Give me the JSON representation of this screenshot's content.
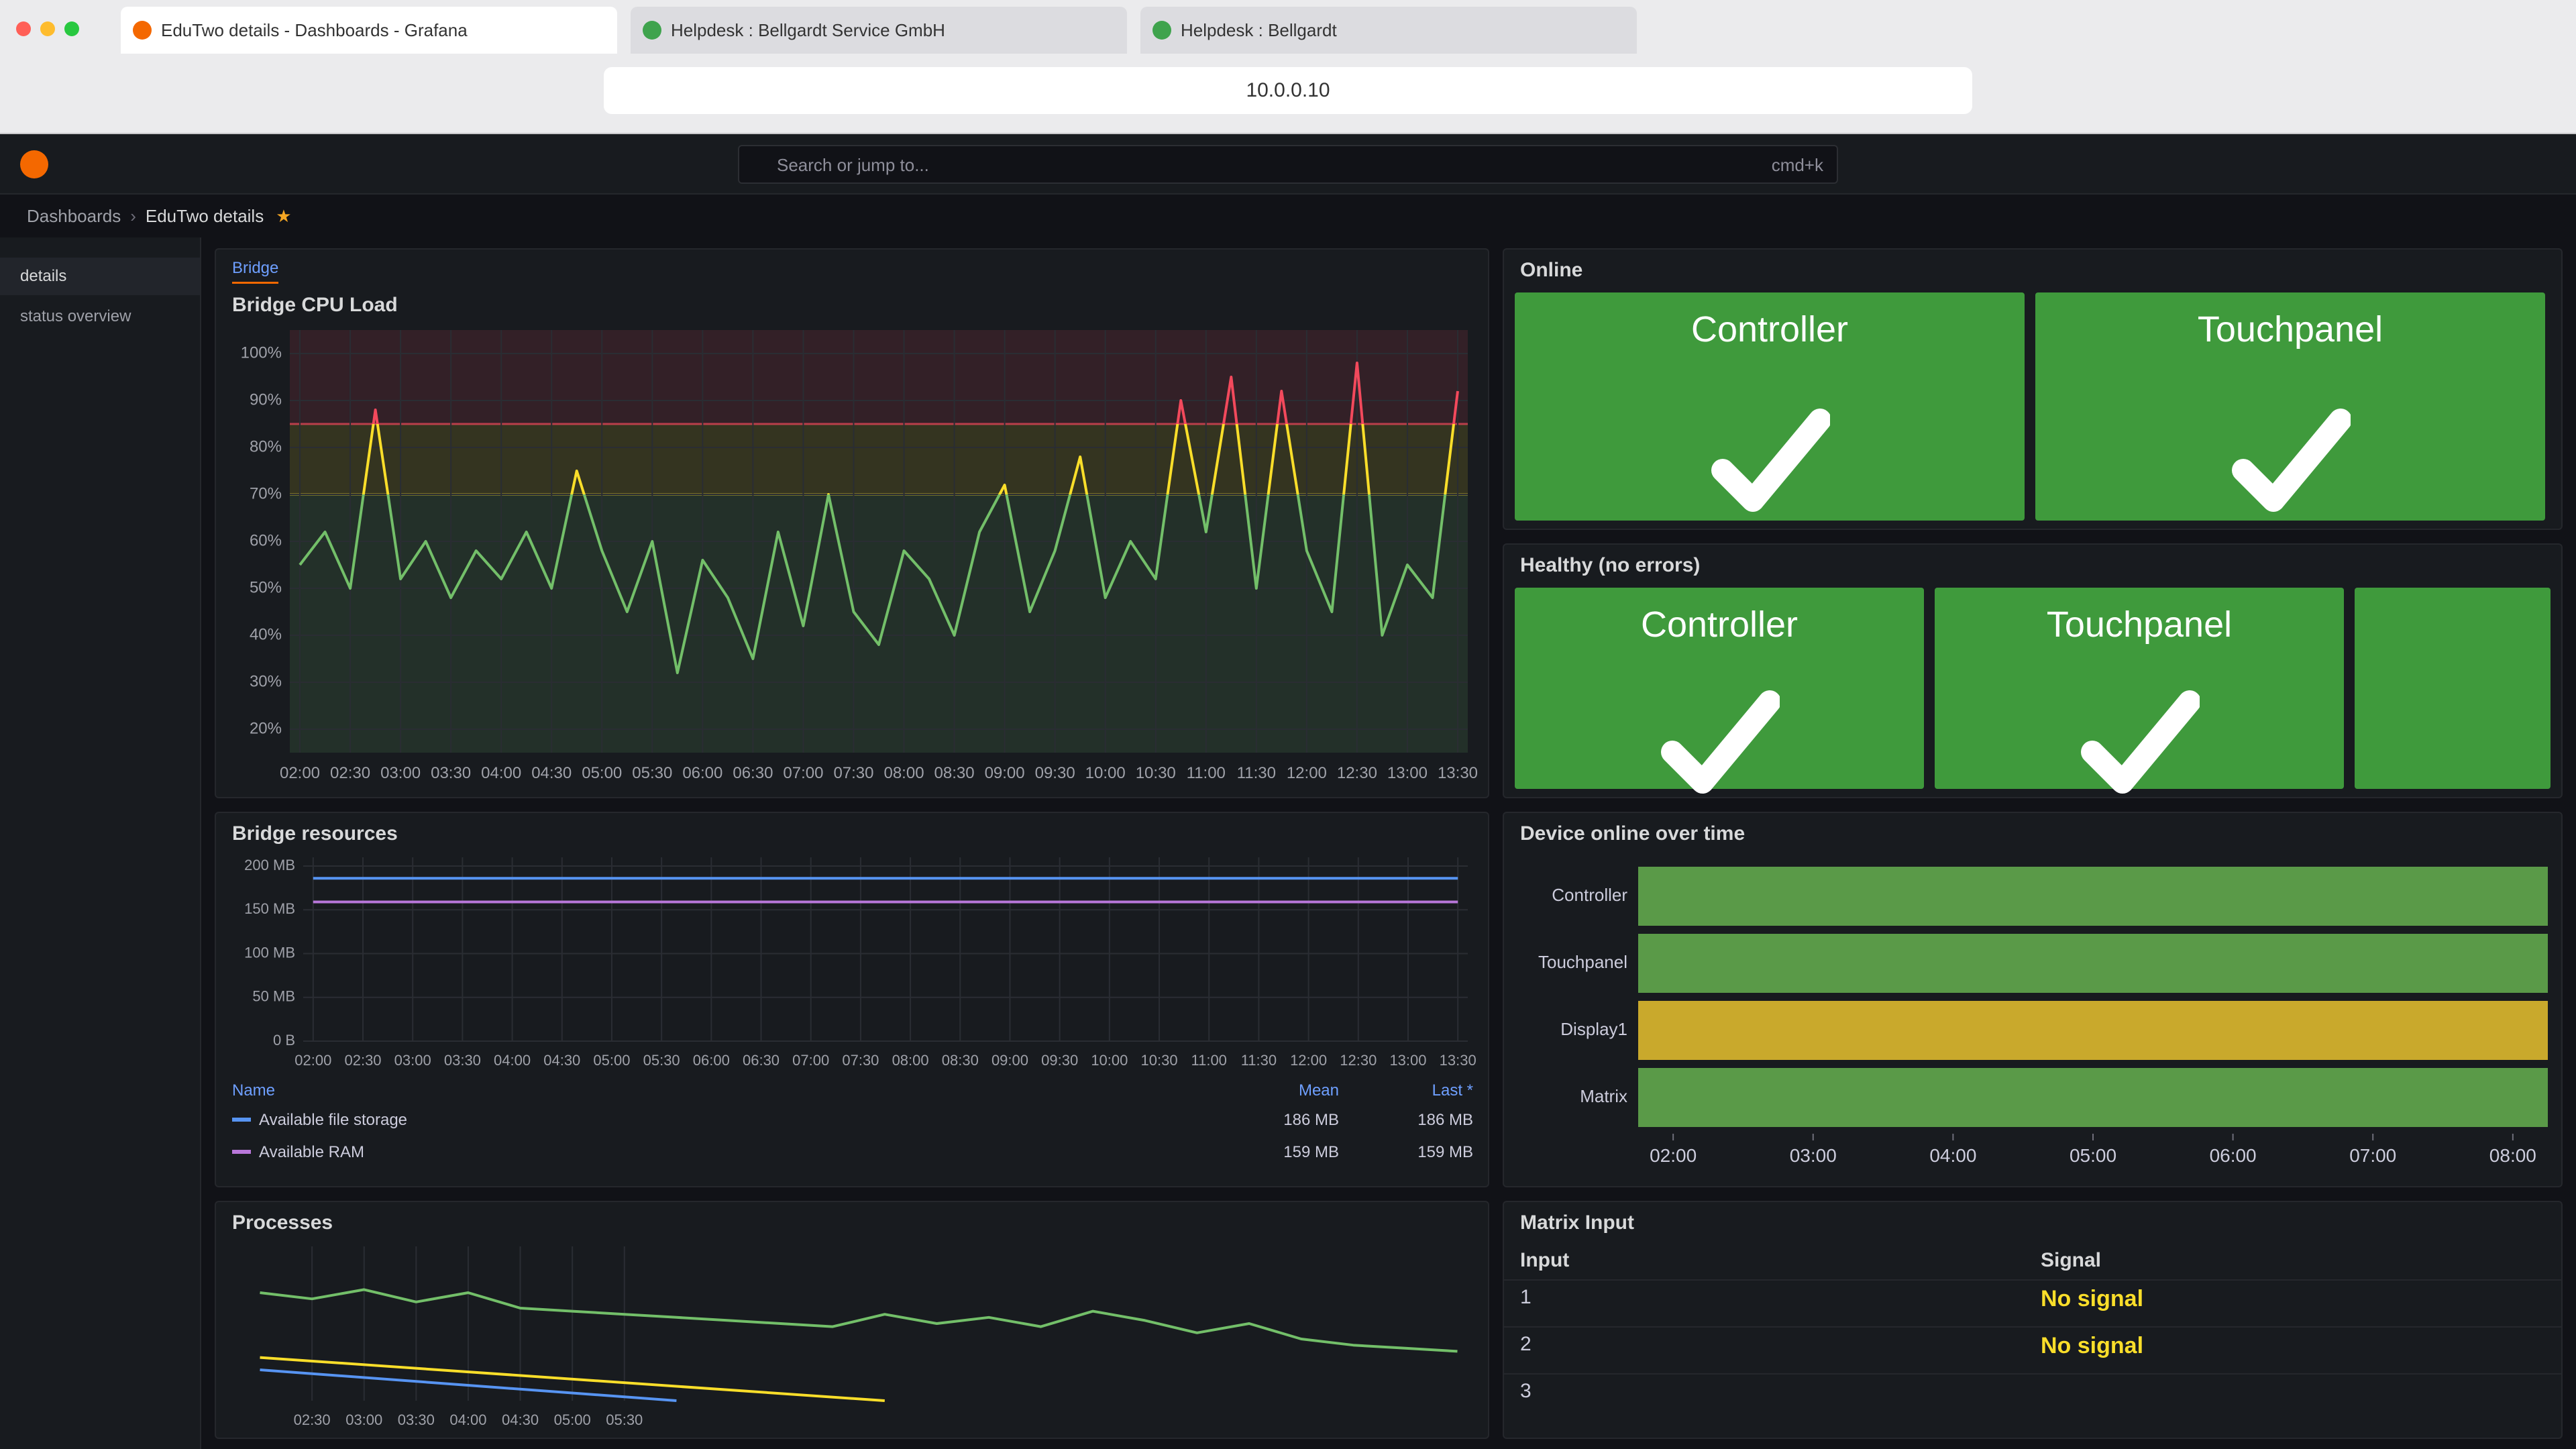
{
  "browser": {
    "tabs": [
      "EduTwo details - Dashboards - Grafana",
      "Helpdesk : Bellgardt Service GmbH",
      "Helpdesk : Bellgardt"
    ],
    "address": "10.0.0.10"
  },
  "topbar": {
    "search": "Search or jump to...",
    "shortcut": "cmd+k"
  },
  "breadcrumb": [
    "Dashboards",
    "EduTwo details"
  ],
  "sidebar": [
    "details",
    "status overview"
  ],
  "cpu_panel": {
    "tab": "Bridge",
    "title": "Bridge CPU Load",
    "chart": {
      "type": "line",
      "xlim": [
        1.9,
        13.6
      ],
      "ylim": [
        15,
        105
      ],
      "xticks": [
        {
          "value": 2,
          "label": "02:00"
        },
        {
          "value": 2.5,
          "label": "02:30"
        },
        {
          "value": 3,
          "label": "03:00"
        },
        {
          "value": 3.5,
          "label": "03:30"
        },
        {
          "value": 4,
          "label": "04:00"
        },
        {
          "value": 4.5,
          "label": "04:30"
        },
        {
          "value": 5,
          "label": "05:00"
        },
        {
          "value": 5.5,
          "label": "05:30"
        },
        {
          "value": 6,
          "label": "06:00"
        },
        {
          "value": 6.5,
          "label": "06:30"
        },
        {
          "value": 7,
          "label": "07:00"
        },
        {
          "value": 7.5,
          "label": "07:30"
        },
        {
          "value": 8,
          "label": "08:00"
        },
        {
          "value": 8.5,
          "label": "08:30"
        },
        {
          "value": 9,
          "label": "09:00"
        },
        {
          "value": 9.5,
          "label": "09:30"
        },
        {
          "value": 10,
          "label": "10:00"
        },
        {
          "value": 10.5,
          "label": "10:30"
        },
        {
          "value": 11,
          "label": "11:00"
        },
        {
          "value": 11.5,
          "label": "11:30"
        },
        {
          "value": 12,
          "label": "12:00"
        },
        {
          "value": 12.5,
          "label": "12:30"
        },
        {
          "value": 13,
          "label": "13:00"
        },
        {
          "value": 13.5,
          "label": "13:30"
        }
      ],
      "yticks": [
        {
          "value": 20,
          "label": "20%"
        },
        {
          "value": 30,
          "label": "30%"
        },
        {
          "value": 40,
          "label": "40%"
        },
        {
          "value": 50,
          "label": "50%"
        },
        {
          "value": 60,
          "label": "60%"
        },
        {
          "value": 70,
          "label": "70%"
        },
        {
          "value": 80,
          "label": "80%"
        },
        {
          "value": 90,
          "label": "90%"
        },
        {
          "value": 100,
          "label": "100%"
        }
      ],
      "grid": true,
      "base_color": "#73bf69",
      "thresholds": [
        {
          "value": 70,
          "color": "#fade2a"
        },
        {
          "value": 85,
          "color": "#f2495c"
        }
      ],
      "series": [
        {
          "x": [
            2,
            2.25,
            2.5,
            2.75,
            3,
            3.25,
            3.5,
            3.75,
            4,
            4.25,
            4.5,
            4.75,
            5,
            5.25,
            5.5,
            5.75,
            6,
            6.25,
            6.5,
            6.75,
            7,
            7.25,
            7.5,
            7.75,
            8,
            8.25,
            8.5,
            8.75,
            9,
            9.25,
            9.5,
            9.75,
            10,
            10.25,
            10.5,
            10.75,
            11,
            11.25,
            11.5,
            11.75,
            12,
            12.25,
            12.5,
            12.75,
            13,
            13.25,
            13.5
          ],
          "values": [
            55,
            62,
            50,
            88,
            52,
            60,
            48,
            58,
            52,
            62,
            50,
            75,
            58,
            45,
            60,
            32,
            56,
            48,
            35,
            62,
            42,
            70,
            45,
            38,
            58,
            52,
            40,
            62,
            72,
            45,
            58,
            78,
            48,
            60,
            52,
            90,
            62,
            95,
            50,
            92,
            58,
            45,
            98,
            40,
            55,
            48,
            92
          ]
        }
      ]
    }
  },
  "resources_panel": {
    "title": "Bridge resources",
    "chart": {
      "type": "line",
      "xlim": [
        1.9,
        13.6
      ],
      "ylim": [
        0,
        210
      ],
      "xticks": [
        {
          "value": 2,
          "label": "02:00"
        },
        {
          "value": 2.5,
          "label": "02:30"
        },
        {
          "value": 3,
          "label": "03:00"
        },
        {
          "value": 3.5,
          "label": "03:30"
        },
        {
          "value": 4,
          "label": "04:00"
        },
        {
          "value": 4.5,
          "label": "04:30"
        },
        {
          "value": 5,
          "label": "05:00"
        },
        {
          "value": 5.5,
          "label": "05:30"
        },
        {
          "value": 6,
          "label": "06:00"
        },
        {
          "value": 6.5,
          "label": "06:30"
        },
        {
          "value": 7,
          "label": "07:00"
        },
        {
          "value": 7.5,
          "label": "07:30"
        },
        {
          "value": 8,
          "label": "08:00"
        },
        {
          "value": 8.5,
          "label": "08:30"
        },
        {
          "value": 9,
          "label": "09:00"
        },
        {
          "value": 9.5,
          "label": "09:30"
        },
        {
          "value": 10,
          "label": "10:00"
        },
        {
          "value": 10.5,
          "label": "10:30"
        },
        {
          "value": 11,
          "label": "11:00"
        },
        {
          "value": 11.5,
          "label": "11:30"
        },
        {
          "value": 12,
          "label": "12:00"
        },
        {
          "value": 12.5,
          "label": "12:30"
        },
        {
          "value": 13,
          "label": "13:00"
        },
        {
          "value": 13.5,
          "label": "13:30"
        }
      ],
      "yticks": [
        {
          "value": 0,
          "label": "0 B"
        },
        {
          "value": 50,
          "label": "50 MB"
        },
        {
          "value": 100,
          "label": "100 MB"
        },
        {
          "value": 150,
          "label": "150 MB"
        },
        {
          "value": 200,
          "label": "200 MB"
        }
      ],
      "grid": true,
      "series": [
        {
          "name": "Available file storage",
          "color": "#5794f2",
          "x": [
            2,
            13.5
          ],
          "values": [
            186,
            186
          ]
        },
        {
          "name": "Available RAM",
          "color": "#b877d9",
          "x": [
            2,
            13.5
          ],
          "values": [
            159,
            159
          ]
        }
      ]
    },
    "legend": {
      "columns": [
        "Name",
        "Mean",
        "Last *"
      ],
      "rows": [
        {
          "mean": {
            "value": 186,
            "label": "186 MB"
          },
          "last": {
            "value": 186,
            "label": "186 MB"
          }
        },
        {
          "mean": {
            "value": 159,
            "label": "159 MB"
          },
          "last": {
            "value": 159,
            "label": "159 MB"
          }
        }
      ]
    }
  },
  "processes_panel": {
    "title": "Processes",
    "chart": {
      "type": "line",
      "xlim": [
        1.9,
        13.6
      ],
      "ylim": [
        0,
        100
      ],
      "xticks": [
        {
          "value": 2.5,
          "label": "02:30"
        },
        {
          "value": 3,
          "label": "03:00"
        },
        {
          "value": 3.5,
          "label": "03:30"
        },
        {
          "value": 4,
          "label": "04:00"
        },
        {
          "value": 4.5,
          "label": "04:30"
        },
        {
          "value": 5,
          "label": "05:00"
        },
        {
          "value": 5.5,
          "label": "05:30"
        }
      ],
      "grid": true,
      "series": [
        {
          "color": "#73bf69",
          "x": [
            2,
            2.5,
            3,
            3.5,
            4,
            4.5,
            5,
            5.5,
            6,
            6.5,
            7,
            7.5,
            8,
            8.5,
            9,
            9.5,
            10,
            10.5,
            11,
            11.5,
            12,
            12.5,
            13,
            13.5
          ],
          "values": [
            70,
            66,
            72,
            64,
            70,
            60,
            58,
            56,
            54,
            52,
            50,
            48,
            56,
            50,
            54,
            48,
            58,
            52,
            44,
            50,
            40,
            36,
            34,
            32
          ]
        },
        {
          "color": "#fade2a",
          "x": [
            2,
            8
          ],
          "values": [
            28,
            0
          ]
        },
        {
          "color": "#5794f2",
          "x": [
            2,
            6
          ],
          "values": [
            20,
            0
          ]
        }
      ]
    }
  },
  "online_panel": {
    "title": "Online",
    "tiles": [
      "Controller",
      "Touchpanel"
    ],
    "color": "#3f9a3c"
  },
  "healthy_panel": {
    "title": "Healthy (no errors)",
    "tiles": [
      "Controller",
      "Touchpanel"
    ],
    "color": "#3f9a3c"
  },
  "timeline_panel": {
    "title": "Device online over time",
    "chart": {
      "type": "timeline",
      "xlim": [
        1.75,
        8.25
      ],
      "xticks": [
        {
          "value": 2,
          "label": "02:00"
        },
        {
          "value": 3,
          "label": "03:00"
        },
        {
          "value": 4,
          "label": "04:00"
        },
        {
          "value": 5,
          "label": "05:00"
        },
        {
          "value": 6,
          "label": "06:00"
        },
        {
          "value": 7,
          "label": "07:00"
        },
        {
          "value": 8,
          "label": "08:00"
        }
      ],
      "rows": [
        {
          "name": "Controller",
          "color": "#5a9a48"
        },
        {
          "name": "Touchpanel",
          "color": "#5a9a48"
        },
        {
          "name": "Display1",
          "color": "#c9a92c"
        },
        {
          "name": "Matrix",
          "color": "#5a9a48"
        }
      ]
    }
  },
  "matrix_panel": {
    "title": "Matrix Input",
    "columns": [
      "Input",
      "Signal"
    ],
    "rows": [
      {
        "input": "1",
        "signal": "No signal"
      },
      {
        "input": "2",
        "signal": "No signal"
      },
      {
        "input": "3"
      }
    ]
  }
}
